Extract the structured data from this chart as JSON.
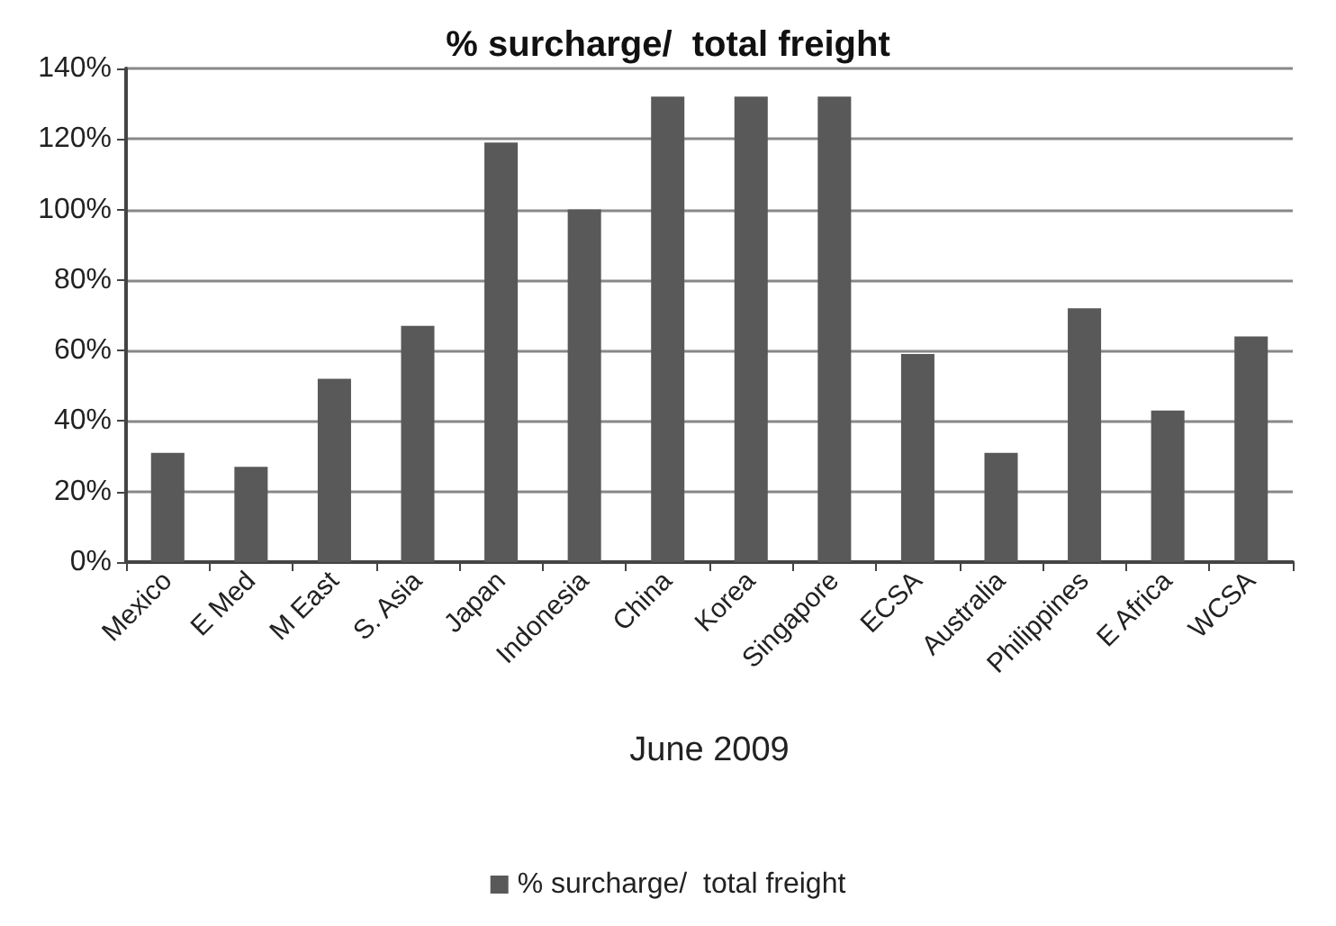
{
  "chart_data": {
    "type": "bar",
    "title": "% surcharge/  total freight",
    "xlabel": "June 2009",
    "categories": [
      "Mexico",
      "E Med",
      "M East",
      "S. Asia",
      "Japan",
      "Indonesia",
      "China",
      "Korea",
      "Singapore",
      "ECSA",
      "Australia",
      "Philippines",
      "E Africa",
      "WCSA"
    ],
    "series": [
      {
        "name": "% surcharge/  total freight",
        "color": "#595959",
        "values": [
          31,
          27,
          52,
          67,
          119,
          100,
          132,
          132,
          132,
          59,
          31,
          72,
          43,
          64
        ]
      }
    ],
    "ylim": [
      0,
      140
    ],
    "yticks": [
      {
        "value": 0,
        "label": "0%"
      },
      {
        "value": 20,
        "label": "20%"
      },
      {
        "value": 40,
        "label": "40%"
      },
      {
        "value": 60,
        "label": "60%"
      },
      {
        "value": 80,
        "label": "80%"
      },
      {
        "value": 100,
        "label": "100%"
      },
      {
        "value": 120,
        "label": "120%"
      },
      {
        "value": 140,
        "label": "140%"
      }
    ],
    "grid": "y",
    "legend": "bottom"
  }
}
